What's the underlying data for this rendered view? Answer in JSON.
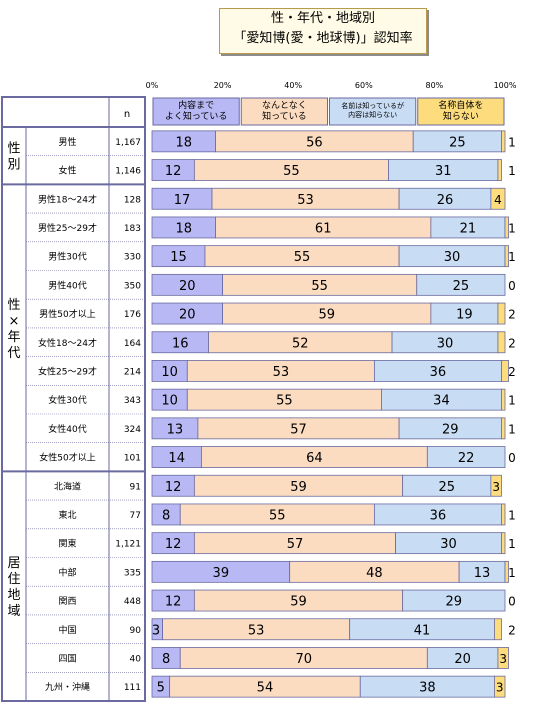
{
  "title_line1": "性・年代・地域別",
  "title_line2": "「愛知博(愛・地球博)」認知率",
  "n_header": "n",
  "groups": [
    {
      "label": "性別",
      "start": 0,
      "count": 2
    },
    {
      "label": "性×年代",
      "start": 2,
      "count": 10
    },
    {
      "label": "居住地域",
      "start": 12,
      "count": 8
    }
  ],
  "colors": {
    "seg1": "#b8b8f4",
    "seg2": "#fcdcc0",
    "seg3": "#c8dcf4",
    "seg4": "#fcdc7c",
    "frame": "#6a6aa0"
  },
  "chart_data": {
    "type": "bar",
    "orientation": "horizontal",
    "stacked": true,
    "percent": true,
    "title": "性・年代・地域別「愛知博(愛・地球博)」認知率",
    "xlim": [
      0,
      100
    ],
    "xticks": [
      "0%",
      "20%",
      "40%",
      "60%",
      "80%",
      "100%"
    ],
    "legend": [
      "内容まで よく知っている",
      "なんとなく 知っている",
      "名前は知っているが 内容は知らない",
      "名称自体を 知らない"
    ],
    "legend_lines": [
      [
        "内容まで",
        "よく知っている"
      ],
      [
        "なんとなく",
        "知っている"
      ],
      [
        "名前は知っているが",
        "内容は知らない"
      ],
      [
        "名称自体を",
        "知らない"
      ]
    ],
    "categories": [
      "男性",
      "女性",
      "男性18～24才",
      "男性25～29才",
      "男性30代",
      "男性40代",
      "男性50才以上",
      "女性18～24才",
      "女性25～29才",
      "女性30代",
      "女性40代",
      "女性50才以上",
      "北海道",
      "東北",
      "関東",
      "中部",
      "関西",
      "中国",
      "四国",
      "九州・沖縄"
    ],
    "n": [
      "1,167",
      "1,146",
      "128",
      "183",
      "330",
      "350",
      "176",
      "164",
      "214",
      "343",
      "324",
      "101",
      "91",
      "77",
      "1,121",
      "335",
      "448",
      "90",
      "40",
      "111"
    ],
    "series": [
      {
        "name": "内容まで よく知っている",
        "values": [
          18,
          12,
          17,
          18,
          15,
          20,
          20,
          16,
          10,
          10,
          13,
          14,
          12,
          8,
          12,
          39,
          12,
          3,
          8,
          5
        ]
      },
      {
        "name": "なんとなく 知っている",
        "values": [
          56,
          55,
          53,
          61,
          55,
          55,
          59,
          52,
          53,
          55,
          57,
          64,
          59,
          55,
          57,
          48,
          59,
          53,
          70,
          54
        ]
      },
      {
        "name": "名前は知っているが 内容は知らない",
        "values": [
          25,
          31,
          26,
          21,
          30,
          25,
          19,
          30,
          36,
          34,
          29,
          22,
          25,
          36,
          30,
          13,
          29,
          41,
          20,
          38
        ]
      },
      {
        "name": "名称自体を 知らない",
        "values": [
          1,
          1,
          4,
          1,
          1,
          0,
          2,
          2,
          2,
          1,
          1,
          0,
          3,
          1,
          1,
          1,
          0,
          2,
          3,
          3
        ]
      }
    ]
  }
}
